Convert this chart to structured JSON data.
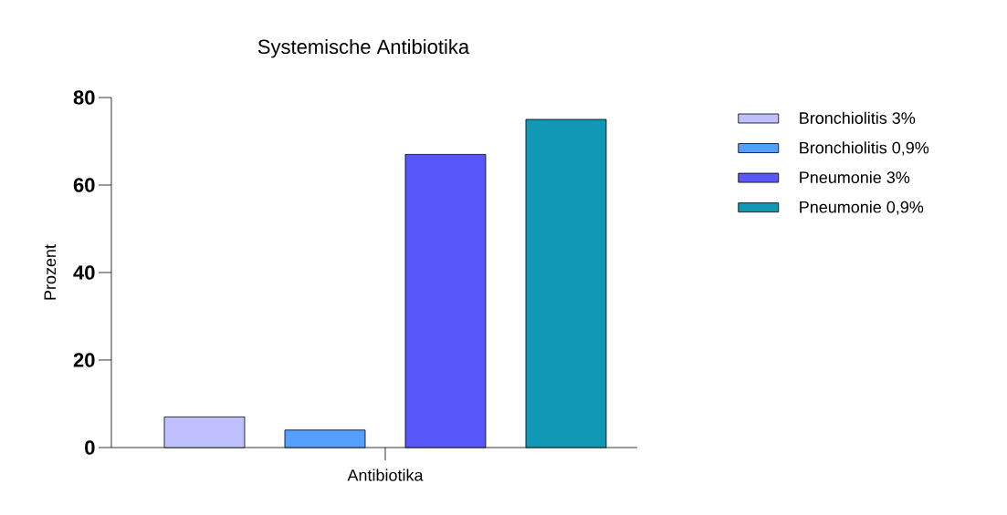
{
  "chart_data": {
    "type": "bar",
    "title": "Systemische Antibiotika",
    "ylabel": "Prozent",
    "categories": [
      "Antibiotika"
    ],
    "series": [
      {
        "name": "Bronchiolitis 3%",
        "color": "#c0c0ff",
        "values": [
          7
        ]
      },
      {
        "name": "Bronchiolitis 0,9%",
        "color": "#559ffe",
        "values": [
          4
        ]
      },
      {
        "name": "Pneumonie 3%",
        "color": "#5757fa",
        "values": [
          67
        ]
      },
      {
        "name": "Pneumonie 0,9%",
        "color": "#1198b4",
        "values": [
          75
        ]
      }
    ],
    "ylim": [
      0,
      80
    ],
    "yticks": [
      0,
      20,
      40,
      60,
      80
    ],
    "grid": false,
    "legend": "top right"
  }
}
